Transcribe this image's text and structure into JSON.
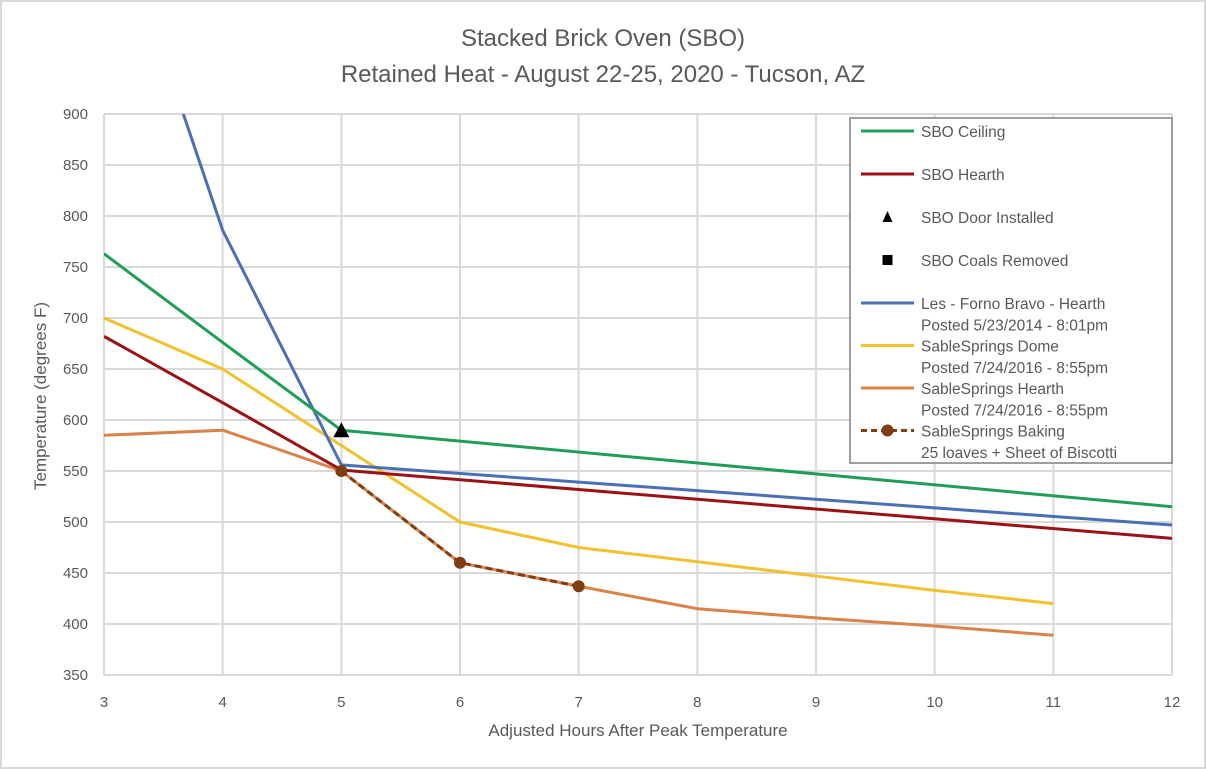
{
  "chart_data": {
    "type": "line",
    "title": "Stacked Brick Oven (SBO)",
    "subtitle": "Retained Heat - August 22-25, 2020 - Tucson, AZ",
    "xlabel": "Adjusted Hours After Peak Temperature",
    "ylabel": "Temperature (degrees F)",
    "xlim": [
      3,
      12
    ],
    "ylim": [
      350,
      900
    ],
    "xticks": [
      3,
      4,
      5,
      6,
      7,
      8,
      9,
      10,
      11,
      12
    ],
    "yticks": [
      350,
      400,
      450,
      500,
      550,
      600,
      650,
      700,
      750,
      800,
      850,
      900
    ],
    "grid": true,
    "legend_position": "top-right",
    "series": [
      {
        "name": "SBO Ceiling",
        "legend_lines": [
          "SBO Ceiling"
        ],
        "color": "#1e9e57",
        "style": "line",
        "points": [
          [
            3,
            763
          ],
          [
            4,
            676
          ],
          [
            5,
            590
          ],
          [
            12,
            515
          ]
        ]
      },
      {
        "name": "SBO Hearth",
        "legend_lines": [
          "SBO Hearth"
        ],
        "color": "#9b1214",
        "style": "line",
        "points": [
          [
            3,
            682
          ],
          [
            4,
            617
          ],
          [
            5,
            551
          ],
          [
            12,
            484
          ]
        ]
      },
      {
        "name": "SBO Door Installed",
        "legend_lines": [
          "SBO Door Installed"
        ],
        "color": "#000000",
        "style": "triangle-marker",
        "points": [
          [
            5,
            590
          ]
        ]
      },
      {
        "name": "SBO Coals Removed",
        "legend_lines": [
          "SBO Coals Removed"
        ],
        "color": "#000000",
        "style": "square-marker",
        "points": []
      },
      {
        "name": "Les - Forno Bravo - Hearth",
        "legend_lines": [
          "Les - Forno Bravo - Hearth",
          "Posted 5/23/2014 - 8:01pm"
        ],
        "color": "#4a6fb5",
        "style": "line",
        "points": [
          [
            3,
            1130
          ],
          [
            4,
            786
          ],
          [
            5,
            556
          ],
          [
            12,
            497
          ]
        ]
      },
      {
        "name": "SableSprings Dome",
        "legend_lines": [
          "SableSprings Dome",
          "Posted 7/24/2016 - 8:55pm"
        ],
        "color": "#f2c12e",
        "style": "line",
        "points": [
          [
            3,
            700
          ],
          [
            4,
            650
          ],
          [
            5,
            575
          ],
          [
            6,
            500
          ],
          [
            7,
            475
          ],
          [
            8,
            461
          ],
          [
            9,
            447
          ],
          [
            10,
            433
          ],
          [
            11,
            420
          ]
        ]
      },
      {
        "name": "SableSprings Hearth",
        "legend_lines": [
          "SableSprings Hearth",
          "Posted 7/24/2016 - 8:55pm"
        ],
        "color": "#d9824a",
        "style": "line",
        "points": [
          [
            3,
            585
          ],
          [
            4,
            590
          ],
          [
            5,
            550
          ],
          [
            6,
            460
          ],
          [
            7,
            437
          ],
          [
            8,
            415
          ],
          [
            9,
            406
          ],
          [
            10,
            398
          ],
          [
            11,
            389
          ]
        ]
      },
      {
        "name": "SableSprings Baking",
        "legend_lines": [
          "SableSprings Baking",
          "25 loaves + Sheet of Biscotti"
        ],
        "color": "#7f3e12",
        "style": "dashed-circle-marker",
        "points": [
          [
            5,
            550
          ],
          [
            6,
            460
          ],
          [
            7,
            437
          ]
        ]
      }
    ]
  }
}
